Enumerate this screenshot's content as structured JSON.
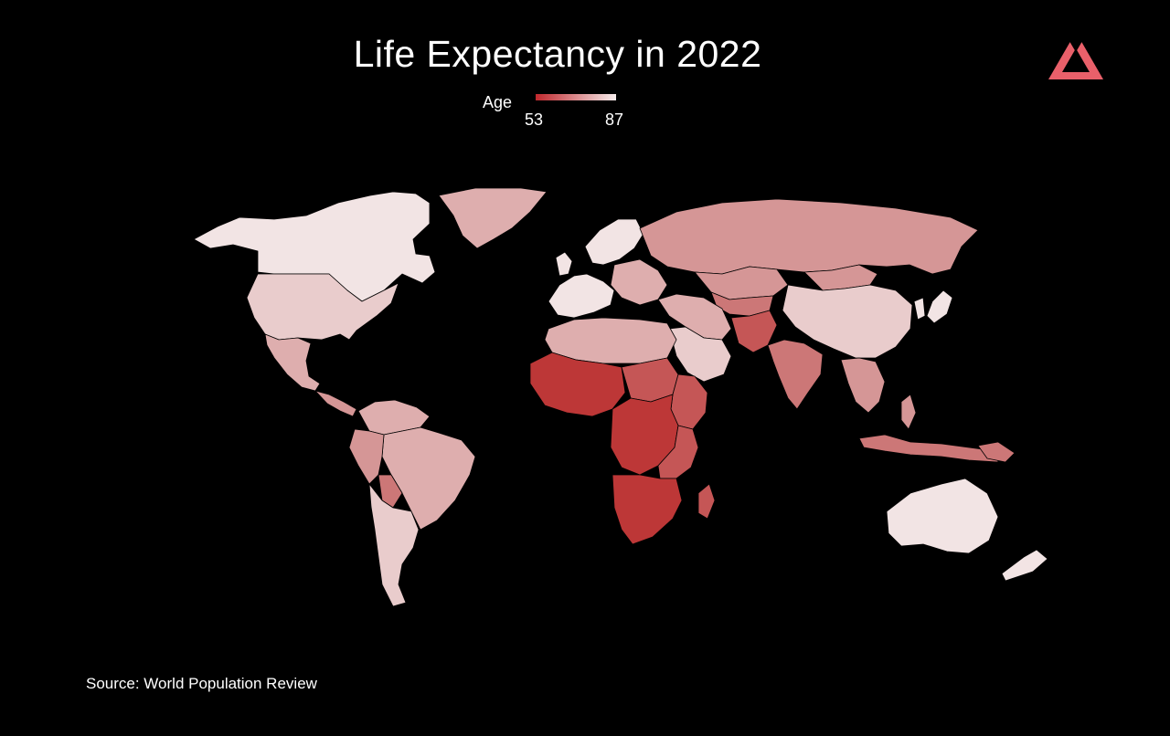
{
  "title": "Life Expectancy in 2022",
  "legend": {
    "label": "Age",
    "min": "53",
    "max": "87",
    "color_min": "#c0282d",
    "color_max": "#f5ecec"
  },
  "source": "Source: World Population Review",
  "colors": {
    "background": "#000000",
    "logo": "#e9606a"
  },
  "map_colors": {
    "very_high": "#f2e4e4",
    "high": "#e9cccc",
    "mid_high": "#deaeae",
    "mid": "#d59696",
    "mid_low": "#cc7777",
    "low": "#c55656",
    "very_low": "#bd3737"
  }
}
